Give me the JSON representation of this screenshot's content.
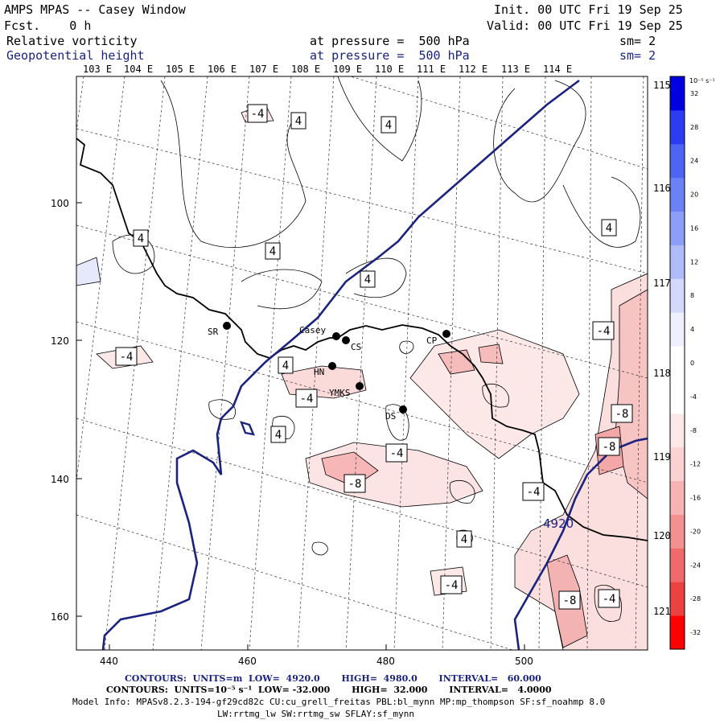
{
  "header": {
    "title": "AMPS MPAS -- Casey Window",
    "fcst": "Fcst.    0 h",
    "init": "Init. 00 UTC Fri 19 Sep 25",
    "valid": "Valid: 00 UTC Fri 19 Sep 25",
    "field1": {
      "name": "Relative vorticity",
      "level": "at pressure =  500 hPa",
      "sm": "sm= 2"
    },
    "field2": {
      "name": "Geopotential height",
      "level": "at pressure =  500 hPa",
      "sm": "sm= 2"
    }
  },
  "axes": {
    "top_lon_labels": [
      "103 E",
      "104 E",
      "105 E",
      "106 E",
      "107 E",
      "108 E",
      "109 E",
      "110 E",
      "111 E",
      "112 E",
      "113 E",
      "114 E"
    ],
    "right_lon_labels": [
      "115 E",
      "116 E",
      "117 E",
      "118 E",
      "119 E",
      "120 E",
      "121 E"
    ],
    "x_ticks": [
      "440",
      "460",
      "480",
      "500"
    ],
    "y_ticks": [
      "100",
      "120",
      "140",
      "160"
    ]
  },
  "stations": [
    {
      "code": "SR"
    },
    {
      "code": "Casey"
    },
    {
      "code": "CS"
    },
    {
      "code": "CP"
    },
    {
      "code": "HN"
    },
    {
      "code": "YMKS"
    },
    {
      "code": "DS"
    }
  ],
  "contour_labels": [
    "-4",
    "4",
    "4",
    "4",
    "4",
    "4",
    "4",
    "-4",
    "4",
    "-4",
    "4",
    "-4",
    "-8",
    "-8",
    "-4",
    "-4",
    "-8",
    "-4",
    "4",
    "-4",
    "-8",
    "-4"
  ],
  "height_label": "4920",
  "colorbar": {
    "unit": "10⁻⁵ s⁻¹",
    "ticks": [
      "32",
      "28",
      "24",
      "20",
      "16",
      "12",
      "8",
      "4",
      "0",
      "-4",
      "-8",
      "-12",
      "-16",
      "-20",
      "-24",
      "-28",
      "-32"
    ],
    "colors": [
      "#0000e0",
      "#2a3df0",
      "#4d66f2",
      "#6a82f4",
      "#8c9ef6",
      "#b0bcf8",
      "#d2d9fb",
      "#eef0fd",
      "#ffffff",
      "#ffffff",
      "#fde8e8",
      "#fad2d2",
      "#f7b3b3",
      "#f39090",
      "#ef6b6b",
      "#ea4141",
      "#ff0000"
    ]
  },
  "footer": {
    "line1": "CONTOURS:  UNITS=m  LOW=  4920.0       HIGH=  4980.0       INTERVAL=   60.000",
    "line2": "CONTOURS:  UNITS=10⁻⁵ s⁻¹  LOW= -32.000       HIGH=  32.000       INTERVAL=   4.0000",
    "line3": "Model Info: MPASv8.2.3-194-gf29cd82c CU:cu_grell_freitas PBL:bl_mynn MP:mp_thompson SF:sf_noahmp 8.0",
    "line4": "LW:rrtmg_lw SW:rrtmg_sw SFLAY:sf_mynn"
  }
}
